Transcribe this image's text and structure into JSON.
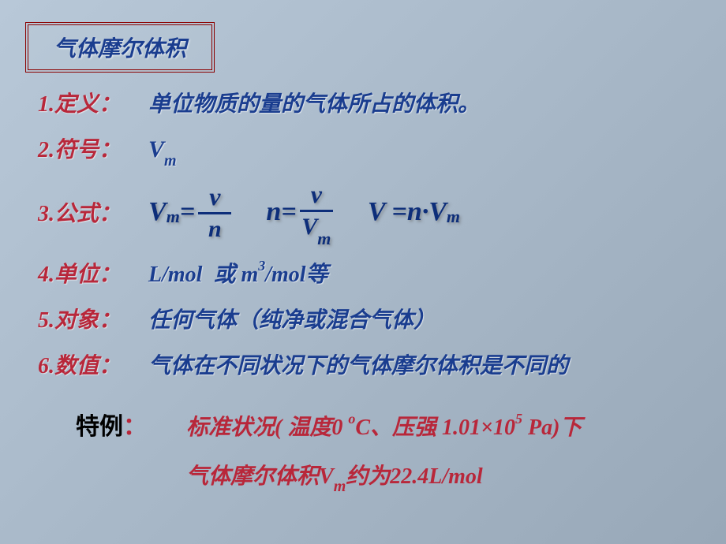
{
  "title": "气体摩尔体积",
  "colors": {
    "title_border": "#8b0000",
    "label_red": "#b8273a",
    "text_blue": "#1a3d8f",
    "formula_blue": "#0d2e7a",
    "black": "#000000",
    "bg_gradient_start": "#b8c8d8",
    "bg_gradient_end": "#98a8b8"
  },
  "typography": {
    "title_fontsize": 28,
    "label_fontsize": 28,
    "formula_fontsize": 34,
    "font_family_cn": "KaiTi",
    "font_family_formula": "Times New Roman"
  },
  "items": [
    {
      "num": "1",
      "label": "1.定义：",
      "value": "单位物质的量的气体所占的体积。"
    },
    {
      "num": "2",
      "label": "2.符号：",
      "value_html": "V<sub>m</sub>"
    },
    {
      "num": "3",
      "label": "3.公式："
    },
    {
      "num": "4",
      "label": "4.单位：",
      "value_html": "L/mol  或 m<sup>3</sup>/mol等"
    },
    {
      "num": "5",
      "label": "5.对象：",
      "value": "任何气体（纯净或混合气体）"
    },
    {
      "num": "6",
      "label": "6.数值：",
      "value": "气体在不同状况下的气体摩尔体积是不同的"
    }
  ],
  "formulas": {
    "f1": {
      "lhs": "V",
      "lhs_sub": "m",
      "eq": " = ",
      "num": "v",
      "den": "n"
    },
    "f2": {
      "lhs": "n",
      "eq": " = ",
      "num": "v",
      "den_main": "V",
      "den_sub": "m"
    },
    "f3": {
      "text": "V =n·V",
      "sub": "m"
    }
  },
  "special": {
    "label": "特例",
    "colon": "：",
    "line1_a": "标准状况( 温度0 ",
    "line1_sup": "o",
    "line1_b": "C、压强 1.01×10",
    "line1_sup2": "5",
    "line1_c": " Pa)下",
    "line2_a": "气体摩尔体积V",
    "line2_sub": "m",
    "line2_b": "约为22.4L/mol"
  }
}
